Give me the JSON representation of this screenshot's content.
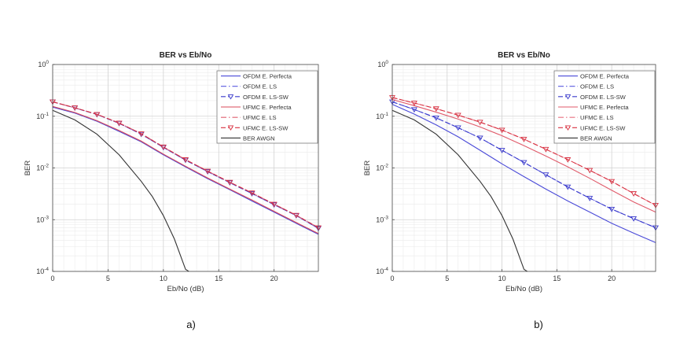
{
  "chart_data": [
    {
      "panel_label": "a)",
      "type": "line",
      "title": "BER vs Eb/No",
      "xlabel": "Eb/No (dB)",
      "ylabel": "BER",
      "xlim": [
        0,
        24
      ],
      "ylim": [
        0.0001,
        1
      ],
      "y_scale": "log",
      "x_ticks": [
        0,
        5,
        10,
        15,
        20
      ],
      "x_tick_labels": [
        "0",
        "5",
        "10",
        "15",
        "20"
      ],
      "y_ticks": [
        0.0001,
        0.001,
        0.01,
        0.1,
        1
      ],
      "y_tick_labels": [
        "10^-4",
        "10^-3",
        "10^-2",
        "10^-1",
        "10^0"
      ],
      "grid": true,
      "legend_position": "top-right",
      "series": [
        {
          "name": "OFDM E. Perfecta",
          "color": "#4a4ad8",
          "dash": "solid",
          "marker": "none",
          "x": [
            0,
            2,
            4,
            6,
            8,
            10,
            12,
            14,
            16,
            18,
            20,
            22,
            24
          ],
          "y": [
            0.15,
            0.115,
            0.08,
            0.051,
            0.032,
            0.018,
            0.0105,
            0.0062,
            0.0038,
            0.0023,
            0.0014,
            0.00085,
            0.00052
          ]
        },
        {
          "name": "OFDM E. LS",
          "color": "#5a5ae0",
          "dash": "dashdot",
          "marker": "none",
          "x": [
            0,
            2,
            4,
            6,
            8,
            10,
            12,
            14,
            16,
            18,
            20,
            22,
            24
          ],
          "y": [
            0.19,
            0.145,
            0.108,
            0.073,
            0.045,
            0.025,
            0.0142,
            0.0085,
            0.0052,
            0.0032,
            0.00195,
            0.0012,
            0.00068
          ]
        },
        {
          "name": "OFDM E. LS-SW",
          "color": "#3a3acc",
          "dash": "dashed",
          "marker": "triangle-down",
          "x": [
            0,
            2,
            4,
            6,
            8,
            10,
            12,
            14,
            16,
            18,
            20,
            22,
            24
          ],
          "y": [
            0.19,
            0.145,
            0.108,
            0.073,
            0.045,
            0.025,
            0.0142,
            0.0085,
            0.0052,
            0.0032,
            0.00195,
            0.0012,
            0.00068
          ]
        },
        {
          "name": "UFMC E. Perfecta",
          "color": "#d84a5a",
          "dash": "solid",
          "marker": "none",
          "x": [
            0,
            2,
            4,
            6,
            8,
            10,
            12,
            14,
            16,
            18,
            20,
            22,
            24
          ],
          "y": [
            0.155,
            0.118,
            0.082,
            0.053,
            0.033,
            0.0185,
            0.0108,
            0.0064,
            0.0039,
            0.0024,
            0.00145,
            0.00088,
            0.00054
          ]
        },
        {
          "name": "UFMC E. LS",
          "color": "#e06070",
          "dash": "dashdot",
          "marker": "none",
          "x": [
            0,
            2,
            4,
            6,
            8,
            10,
            12,
            14,
            16,
            18,
            20,
            22,
            24
          ],
          "y": [
            0.19,
            0.146,
            0.109,
            0.074,
            0.046,
            0.0255,
            0.0145,
            0.0087,
            0.0053,
            0.0033,
            0.002,
            0.00122,
            0.0007
          ]
        },
        {
          "name": "UFMC E. LS-SW",
          "color": "#d83040",
          "dash": "dashed",
          "marker": "triangle-down",
          "x": [
            0,
            2,
            4,
            6,
            8,
            10,
            12,
            14,
            16,
            18,
            20,
            22,
            24
          ],
          "y": [
            0.19,
            0.146,
            0.109,
            0.074,
            0.046,
            0.0255,
            0.0145,
            0.0087,
            0.0053,
            0.0033,
            0.002,
            0.00122,
            0.0007
          ]
        },
        {
          "name": "BER AWGN",
          "color": "#333333",
          "dash": "solid",
          "marker": "none",
          "x": [
            0,
            2,
            4,
            6,
            8,
            9,
            10,
            11,
            12,
            12.3
          ],
          "y": [
            0.13,
            0.085,
            0.045,
            0.018,
            0.0055,
            0.0028,
            0.0012,
            0.00042,
            0.00011,
            0.0001
          ]
        }
      ]
    },
    {
      "panel_label": "b)",
      "type": "line",
      "title": "BER vs Eb/No",
      "xlabel": "Eb/No (dB)",
      "ylabel": "BER",
      "xlim": [
        0,
        24
      ],
      "ylim": [
        0.0001,
        1
      ],
      "y_scale": "log",
      "x_ticks": [
        0,
        5,
        10,
        15,
        20
      ],
      "x_tick_labels": [
        "0",
        "5",
        "10",
        "15",
        "20"
      ],
      "y_ticks": [
        0.0001,
        0.001,
        0.01,
        0.1,
        1
      ],
      "y_tick_labels": [
        "10^-4",
        "10^-3",
        "10^-2",
        "10^-1",
        "10^0"
      ],
      "grid": true,
      "legend_position": "top-right",
      "series": [
        {
          "name": "OFDM E. Perfecta",
          "color": "#4a4ad8",
          "dash": "solid",
          "marker": "none",
          "x": [
            0,
            2,
            4,
            6,
            8,
            10,
            12,
            14,
            16,
            18,
            20,
            22,
            24
          ],
          "y": [
            0.17,
            0.11,
            0.068,
            0.04,
            0.022,
            0.012,
            0.0068,
            0.0039,
            0.0023,
            0.0014,
            0.00085,
            0.00055,
            0.00036
          ]
        },
        {
          "name": "OFDM E. LS",
          "color": "#5a5ae0",
          "dash": "dashdot",
          "marker": "none",
          "x": [
            0,
            2,
            4,
            6,
            8,
            10,
            12,
            14,
            16,
            18,
            20,
            22,
            24
          ],
          "y": [
            0.19,
            0.135,
            0.093,
            0.06,
            0.038,
            0.022,
            0.0128,
            0.0074,
            0.0043,
            0.0026,
            0.0016,
            0.00105,
            0.0007
          ]
        },
        {
          "name": "OFDM E. LS-SW",
          "color": "#3a3acc",
          "dash": "dashed",
          "marker": "triangle-down",
          "x": [
            0,
            2,
            4,
            6,
            8,
            10,
            12,
            14,
            16,
            18,
            20,
            22,
            24
          ],
          "y": [
            0.19,
            0.135,
            0.093,
            0.06,
            0.038,
            0.022,
            0.0128,
            0.0074,
            0.0043,
            0.0026,
            0.0016,
            0.00105,
            0.0007
          ]
        },
        {
          "name": "UFMC E. Perfecta",
          "color": "#e05a6a",
          "dash": "solid",
          "marker": "none",
          "x": [
            0,
            2,
            4,
            6,
            8,
            10,
            12,
            14,
            16,
            18,
            20,
            22,
            24
          ],
          "y": [
            0.21,
            0.16,
            0.12,
            0.088,
            0.062,
            0.042,
            0.027,
            0.017,
            0.0105,
            0.0063,
            0.0037,
            0.0022,
            0.0014
          ]
        },
        {
          "name": "UFMC E. LS",
          "color": "#e87080",
          "dash": "dashdot",
          "marker": "none",
          "x": [
            0,
            2,
            4,
            6,
            8,
            10,
            12,
            14,
            16,
            18,
            20,
            22,
            24
          ],
          "y": [
            0.23,
            0.18,
            0.14,
            0.105,
            0.077,
            0.054,
            0.036,
            0.023,
            0.0145,
            0.009,
            0.0055,
            0.0032,
            0.0019
          ]
        },
        {
          "name": "UFMC E. LS-SW",
          "color": "#d83040",
          "dash": "dashed",
          "marker": "triangle-down",
          "x": [
            0,
            2,
            4,
            6,
            8,
            10,
            12,
            14,
            16,
            18,
            20,
            22,
            24
          ],
          "y": [
            0.23,
            0.18,
            0.14,
            0.105,
            0.077,
            0.054,
            0.036,
            0.023,
            0.0145,
            0.009,
            0.0055,
            0.0032,
            0.0019
          ]
        },
        {
          "name": "BER AWGN",
          "color": "#333333",
          "dash": "solid",
          "marker": "none",
          "x": [
            0,
            2,
            4,
            6,
            8,
            9,
            10,
            11,
            12,
            12.3
          ],
          "y": [
            0.13,
            0.085,
            0.045,
            0.018,
            0.0055,
            0.0028,
            0.0012,
            0.00042,
            0.00011,
            0.0001
          ]
        }
      ]
    }
  ]
}
